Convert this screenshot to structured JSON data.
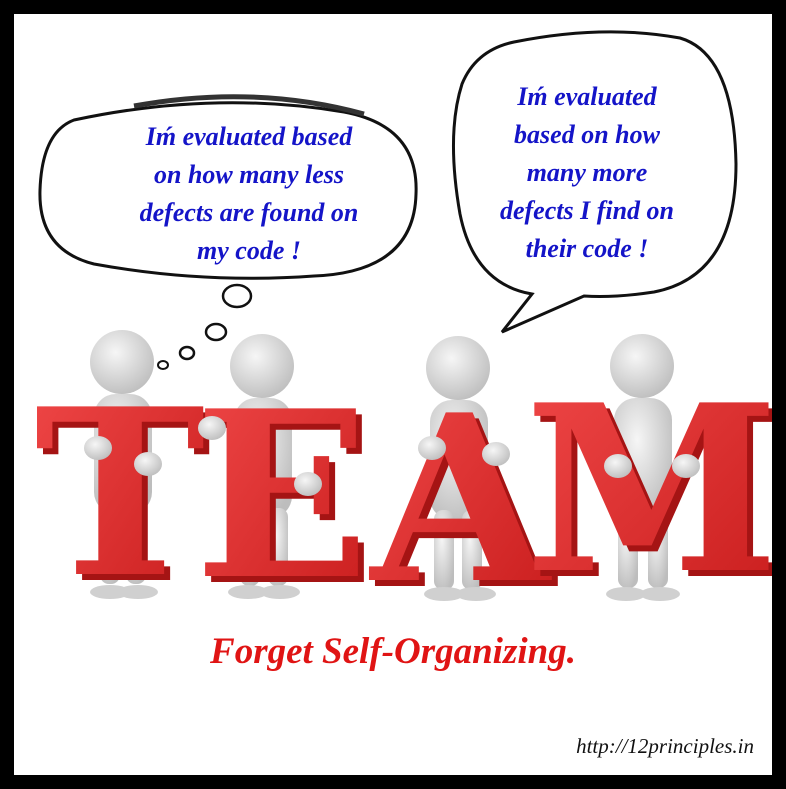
{
  "left_bubble": {
    "lines": [
      "Iḿ evaluated based",
      "on how many less",
      "defects are found on",
      "my code !"
    ]
  },
  "right_bubble": {
    "lines": [
      "Iḿ evaluated",
      "based on how",
      "many more",
      "defects I find on",
      "their code !"
    ]
  },
  "letters": [
    "T",
    "E",
    "A",
    "M"
  ],
  "tagline": "Forget Self-Organizing.",
  "url": "http://12principles.in",
  "colors": {
    "bubble_text": "#1414c8",
    "tagline": "#e01414",
    "letters": "#e02626",
    "figure": "#e4e4e4",
    "frame": "#000000"
  }
}
